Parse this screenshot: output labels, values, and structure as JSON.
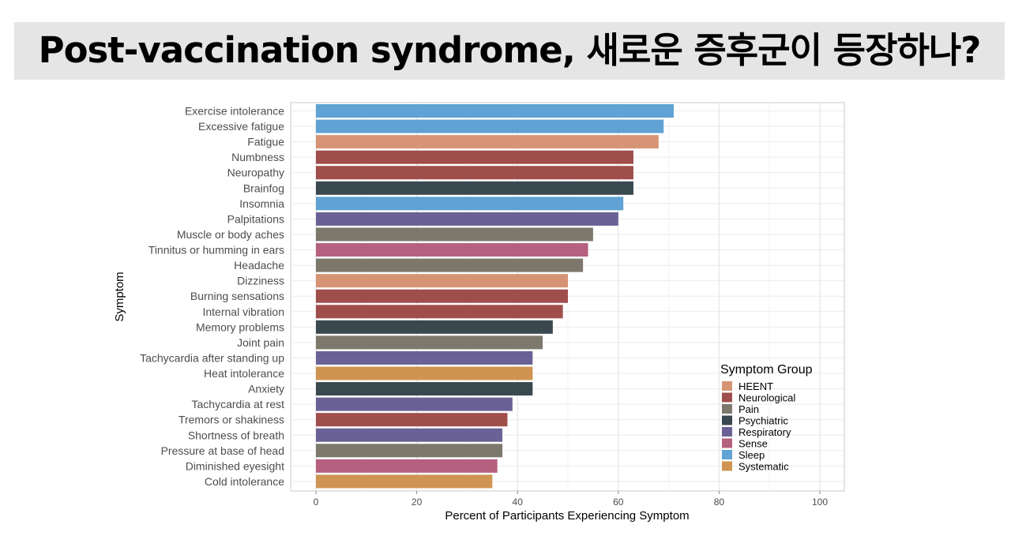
{
  "title": "Post-vaccination syndrome, 새로운 증후군이 등장하나?",
  "chart_data": {
    "type": "bar",
    "orientation": "horizontal",
    "xlabel": "Percent of Participants Experiencing Symptom",
    "ylabel": "Symptom",
    "xlim": [
      0,
      105
    ],
    "x_ticks": [
      0,
      20,
      40,
      60,
      80,
      100
    ],
    "grid": true,
    "legend": {
      "title": "Symptom Group",
      "position": "bottom-right",
      "items": [
        {
          "label": "HEENT",
          "color": "#d69474"
        },
        {
          "label": "Neurological",
          "color": "#a04e4b"
        },
        {
          "label": "Pain",
          "color": "#7d786c"
        },
        {
          "label": "Psychiatric",
          "color": "#3a4850"
        },
        {
          "label": "Respiratory",
          "color": "#6a6296"
        },
        {
          "label": "Sense",
          "color": "#b5607e"
        },
        {
          "label": "Sleep",
          "color": "#5fa2d3"
        },
        {
          "label": "Systematic",
          "color": "#cf9452"
        }
      ]
    },
    "bars": [
      {
        "symptom": "Exercise intolerance",
        "value": 71,
        "group": "Sleep"
      },
      {
        "symptom": "Excessive fatigue",
        "value": 69,
        "group": "Sleep"
      },
      {
        "symptom": "Fatigue",
        "value": 68,
        "group": "HEENT"
      },
      {
        "symptom": "Numbness",
        "value": 63,
        "group": "Neurological"
      },
      {
        "symptom": "Neuropathy",
        "value": 63,
        "group": "Neurological"
      },
      {
        "symptom": "Brainfog",
        "value": 63,
        "group": "Psychiatric"
      },
      {
        "symptom": "Insomnia",
        "value": 61,
        "group": "Sleep"
      },
      {
        "symptom": "Palpitations",
        "value": 60,
        "group": "Respiratory"
      },
      {
        "symptom": "Muscle or body aches",
        "value": 55,
        "group": "Pain"
      },
      {
        "symptom": "Tinnitus or humming in ears",
        "value": 54,
        "group": "Sense"
      },
      {
        "symptom": "Headache",
        "value": 53,
        "group": "Pain"
      },
      {
        "symptom": "Dizziness",
        "value": 50,
        "group": "HEENT"
      },
      {
        "symptom": "Burning sensations",
        "value": 50,
        "group": "Neurological"
      },
      {
        "symptom": "Internal vibration",
        "value": 49,
        "group": "Neurological"
      },
      {
        "symptom": "Memory problems",
        "value": 47,
        "group": "Psychiatric"
      },
      {
        "symptom": "Joint pain",
        "value": 45,
        "group": "Pain"
      },
      {
        "symptom": "Tachycardia after standing up",
        "value": 43,
        "group": "Respiratory"
      },
      {
        "symptom": "Heat intolerance",
        "value": 43,
        "group": "Systematic"
      },
      {
        "symptom": "Anxiety",
        "value": 43,
        "group": "Psychiatric"
      },
      {
        "symptom": "Tachycardia at rest",
        "value": 39,
        "group": "Respiratory"
      },
      {
        "symptom": "Tremors or shakiness",
        "value": 38,
        "group": "Neurological"
      },
      {
        "symptom": "Shortness of breath",
        "value": 37,
        "group": "Respiratory"
      },
      {
        "symptom": "Pressure at base of head",
        "value": 37,
        "group": "Pain"
      },
      {
        "symptom": "Diminished eyesight",
        "value": 36,
        "group": "Sense"
      },
      {
        "symptom": "Cold intolerance",
        "value": 35,
        "group": "Systematic"
      }
    ]
  }
}
